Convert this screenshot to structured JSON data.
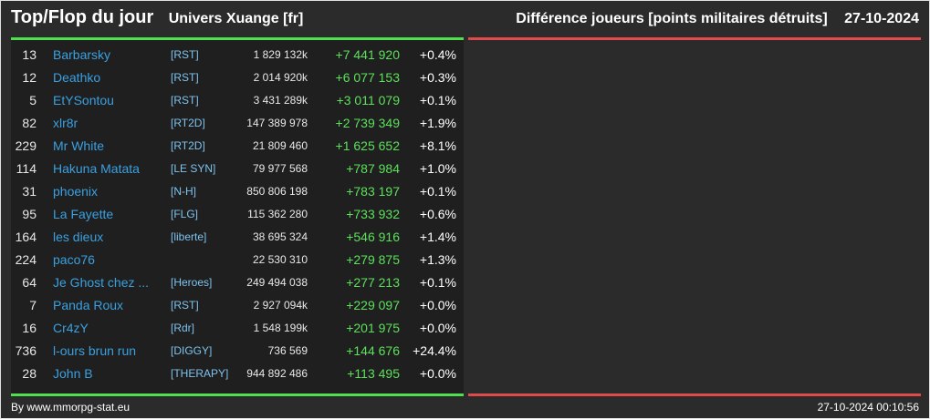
{
  "header": {
    "title": "Top/Flop du jour",
    "universe": "Univers Xuange [fr]",
    "metric": "Différence joueurs [points militaires détruits]",
    "date": "27-10-2024"
  },
  "colors": {
    "top_bar": "#4fe04f",
    "flop_bar": "#e04a4a",
    "name": "#3aa0e0",
    "tag": "#7ec3ee",
    "positive": "#5ce05c"
  },
  "rows": [
    {
      "rank": "13",
      "name": "Barbarsky",
      "tag": "[RST]",
      "points": "1 829 132k",
      "diff": "+7 441 920",
      "pct": "+0.4%"
    },
    {
      "rank": "12",
      "name": "Deathko",
      "tag": "[RST]",
      "points": "2 014 920k",
      "diff": "+6 077 153",
      "pct": "+0.3%"
    },
    {
      "rank": "5",
      "name": "EtYSontou",
      "tag": "[RST]",
      "points": "3 431 289k",
      "diff": "+3 011 079",
      "pct": "+0.1%"
    },
    {
      "rank": "82",
      "name": "xlr8r",
      "tag": "[RT2D]",
      "points": "147 389 978",
      "diff": "+2 739 349",
      "pct": "+1.9%"
    },
    {
      "rank": "229",
      "name": "Mr White",
      "tag": "[RT2D]",
      "points": "21 809 460",
      "diff": "+1 625 652",
      "pct": "+8.1%"
    },
    {
      "rank": "114",
      "name": "Hakuna Matata",
      "tag": "[LE SYN]",
      "points": "79 977 568",
      "diff": "+787 984",
      "pct": "+1.0%"
    },
    {
      "rank": "31",
      "name": "phoenix",
      "tag": "[N-H]",
      "points": "850 806 198",
      "diff": "+783 197",
      "pct": "+0.1%"
    },
    {
      "rank": "95",
      "name": "La Fayette",
      "tag": "[FLG]",
      "points": "115 362 280",
      "diff": "+733 932",
      "pct": "+0.6%"
    },
    {
      "rank": "164",
      "name": "les dieux",
      "tag": "[liberte]",
      "points": "38 695 324",
      "diff": "+546 916",
      "pct": "+1.4%"
    },
    {
      "rank": "224",
      "name": "paco76",
      "tag": "",
      "points": "22 530 310",
      "diff": "+279 875",
      "pct": "+1.3%"
    },
    {
      "rank": "64",
      "name": "Je Ghost chez ...",
      "tag": "[Heroes]",
      "points": "249 494 038",
      "diff": "+277 213",
      "pct": "+0.1%"
    },
    {
      "rank": "7",
      "name": "Panda Roux",
      "tag": "[RST]",
      "points": "2 927 094k",
      "diff": "+229 097",
      "pct": "+0.0%"
    },
    {
      "rank": "16",
      "name": "Cr4zY",
      "tag": "[Rdr]",
      "points": "1 548 199k",
      "diff": "+201 975",
      "pct": "+0.0%"
    },
    {
      "rank": "736",
      "name": "l-ours brun run",
      "tag": "[DIGGY]",
      "points": "736 569",
      "diff": "+144 676",
      "pct": "+24.4%"
    },
    {
      "rank": "28",
      "name": "John B",
      "tag": "[THERAPY]",
      "points": "944 892 486",
      "diff": "+113 495",
      "pct": "+0.0%"
    }
  ],
  "footer": {
    "credit": "By www.mmorpg-stat.eu",
    "timestamp": "27-10-2024 00:10:56"
  }
}
